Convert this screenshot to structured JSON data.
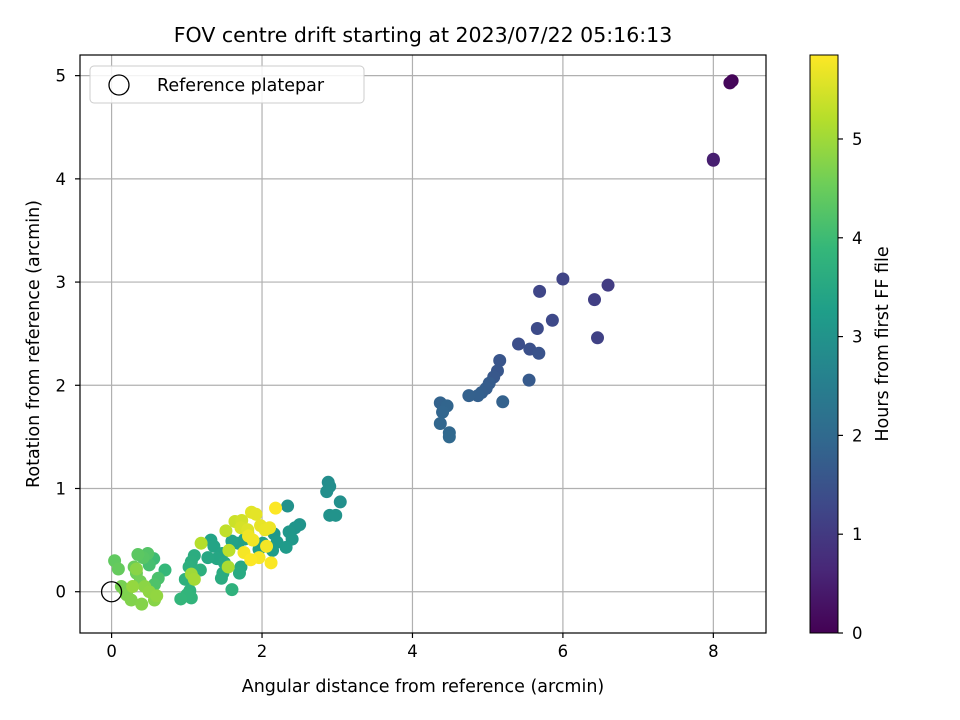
{
  "chart_data": {
    "type": "scatter",
    "title": "FOV centre drift starting at 2023/07/22 05:16:13",
    "xlabel": "Angular distance from reference (arcmin)",
    "ylabel": "Rotation from reference (arcmin)",
    "xlim": [
      -0.42,
      8.7
    ],
    "ylim": [
      -0.4,
      5.2
    ],
    "xticks": [
      0,
      2,
      4,
      6,
      8
    ],
    "yticks": [
      0,
      1,
      2,
      3,
      4,
      5
    ],
    "grid": true,
    "legend": {
      "label": "Reference platepar",
      "placement": "top-left"
    },
    "reference_point": {
      "x": 0,
      "y": 0
    },
    "colorbar": {
      "label": "Hours from first FF file",
      "range": [
        0,
        5.85
      ],
      "ticks": [
        0,
        1,
        2,
        3,
        4,
        5
      ],
      "colormap": "viridis"
    },
    "colormap_stops": [
      "#440154",
      "#482878",
      "#3e4989",
      "#31688e",
      "#26828e",
      "#1f9e89",
      "#35b779",
      "#6ece58",
      "#b5de2b",
      "#fde725"
    ],
    "points": [
      {
        "x": 8.25,
        "y": 4.95,
        "c": 0.05
      },
      {
        "x": 8.22,
        "y": 4.93,
        "c": 0.1
      },
      {
        "x": 8.0,
        "y": 4.18,
        "c": 0.45
      },
      {
        "x": 8.0,
        "y": 4.19,
        "c": 0.5
      },
      {
        "x": 6.6,
        "y": 2.97,
        "c": 1.05
      },
      {
        "x": 6.42,
        "y": 2.83,
        "c": 1.1
      },
      {
        "x": 6.46,
        "y": 2.46,
        "c": 1.15
      },
      {
        "x": 6.0,
        "y": 3.03,
        "c": 1.2
      },
      {
        "x": 5.69,
        "y": 2.91,
        "c": 1.25
      },
      {
        "x": 5.86,
        "y": 2.63,
        "c": 1.3
      },
      {
        "x": 5.66,
        "y": 2.55,
        "c": 1.35
      },
      {
        "x": 5.41,
        "y": 2.4,
        "c": 1.4
      },
      {
        "x": 5.56,
        "y": 2.35,
        "c": 1.45
      },
      {
        "x": 5.68,
        "y": 2.31,
        "c": 1.5
      },
      {
        "x": 5.16,
        "y": 2.24,
        "c": 1.55
      },
      {
        "x": 5.13,
        "y": 2.14,
        "c": 1.58
      },
      {
        "x": 5.08,
        "y": 2.08,
        "c": 1.62
      },
      {
        "x": 5.55,
        "y": 2.05,
        "c": 1.65
      },
      {
        "x": 5.02,
        "y": 2.02,
        "c": 1.7
      },
      {
        "x": 4.98,
        "y": 1.97,
        "c": 1.72
      },
      {
        "x": 4.92,
        "y": 1.93,
        "c": 1.75
      },
      {
        "x": 4.87,
        "y": 1.9,
        "c": 1.78
      },
      {
        "x": 4.75,
        "y": 1.9,
        "c": 1.8
      },
      {
        "x": 5.2,
        "y": 1.84,
        "c": 1.82
      },
      {
        "x": 4.37,
        "y": 1.83,
        "c": 1.85
      },
      {
        "x": 4.46,
        "y": 1.8,
        "c": 1.88
      },
      {
        "x": 4.4,
        "y": 1.74,
        "c": 1.9
      },
      {
        "x": 4.37,
        "y": 1.63,
        "c": 1.92
      },
      {
        "x": 4.49,
        "y": 1.54,
        "c": 1.95
      },
      {
        "x": 4.49,
        "y": 1.5,
        "c": 1.97
      },
      {
        "x": 2.88,
        "y": 1.06,
        "c": 2.85
      },
      {
        "x": 2.9,
        "y": 1.02,
        "c": 2.88
      },
      {
        "x": 2.86,
        "y": 0.97,
        "c": 2.9
      },
      {
        "x": 3.04,
        "y": 0.87,
        "c": 2.92
      },
      {
        "x": 2.34,
        "y": 0.83,
        "c": 2.95
      },
      {
        "x": 2.9,
        "y": 0.74,
        "c": 2.97
      },
      {
        "x": 2.98,
        "y": 0.74,
        "c": 3.0
      },
      {
        "x": 2.5,
        "y": 0.65,
        "c": 3.02
      },
      {
        "x": 2.44,
        "y": 0.62,
        "c": 3.05
      },
      {
        "x": 2.36,
        "y": 0.58,
        "c": 3.08
      },
      {
        "x": 2.4,
        "y": 0.51,
        "c": 3.1
      },
      {
        "x": 2.16,
        "y": 0.56,
        "c": 3.12
      },
      {
        "x": 2.2,
        "y": 0.48,
        "c": 3.15
      },
      {
        "x": 2.32,
        "y": 0.43,
        "c": 3.18
      },
      {
        "x": 2.14,
        "y": 0.4,
        "c": 3.2
      },
      {
        "x": 2.01,
        "y": 0.47,
        "c": 3.22
      },
      {
        "x": 1.96,
        "y": 0.41,
        "c": 3.25
      },
      {
        "x": 1.81,
        "y": 0.57,
        "c": 3.28
      },
      {
        "x": 1.77,
        "y": 0.51,
        "c": 3.3
      },
      {
        "x": 1.68,
        "y": 0.47,
        "c": 3.32
      },
      {
        "x": 1.6,
        "y": 0.49,
        "c": 3.35
      },
      {
        "x": 1.32,
        "y": 0.5,
        "c": 3.38
      },
      {
        "x": 1.36,
        "y": 0.44,
        "c": 3.4
      },
      {
        "x": 1.47,
        "y": 0.37,
        "c": 3.42
      },
      {
        "x": 1.4,
        "y": 0.32,
        "c": 3.45
      },
      {
        "x": 1.28,
        "y": 0.33,
        "c": 3.48
      },
      {
        "x": 1.5,
        "y": 0.28,
        "c": 3.5
      },
      {
        "x": 1.72,
        "y": 0.24,
        "c": 3.52
      },
      {
        "x": 1.7,
        "y": 0.18,
        "c": 3.55
      },
      {
        "x": 1.48,
        "y": 0.18,
        "c": 3.58
      },
      {
        "x": 1.46,
        "y": 0.13,
        "c": 3.6
      },
      {
        "x": 1.1,
        "y": 0.35,
        "c": 3.62
      },
      {
        "x": 1.06,
        "y": 0.29,
        "c": 3.65
      },
      {
        "x": 1.03,
        "y": 0.24,
        "c": 3.68
      },
      {
        "x": 1.18,
        "y": 0.21,
        "c": 3.7
      },
      {
        "x": 0.98,
        "y": 0.12,
        "c": 3.72
      },
      {
        "x": 1.6,
        "y": 0.02,
        "c": 3.75
      },
      {
        "x": 1.04,
        "y": 0.01,
        "c": 3.78
      },
      {
        "x": 1.06,
        "y": -0.06,
        "c": 3.8
      },
      {
        "x": 1.0,
        "y": -0.03,
        "c": 3.82
      },
      {
        "x": 0.92,
        "y": -0.07,
        "c": 3.85
      },
      {
        "x": 0.71,
        "y": 0.21,
        "c": 3.9
      },
      {
        "x": 0.56,
        "y": 0.32,
        "c": 4.0
      },
      {
        "x": 0.5,
        "y": 0.26,
        "c": 4.1
      },
      {
        "x": 0.62,
        "y": 0.13,
        "c": 4.15
      },
      {
        "x": 0.57,
        "y": 0.07,
        "c": 4.2
      },
      {
        "x": 0.48,
        "y": 0.37,
        "c": 4.25
      },
      {
        "x": 0.42,
        "y": 0.33,
        "c": 4.3
      },
      {
        "x": 0.35,
        "y": 0.36,
        "c": 4.35
      },
      {
        "x": 0.04,
        "y": 0.3,
        "c": 4.4
      },
      {
        "x": 0.09,
        "y": 0.22,
        "c": 4.45
      },
      {
        "x": 0.3,
        "y": 0.24,
        "c": 4.5
      },
      {
        "x": 0.33,
        "y": 0.18,
        "c": 4.55
      },
      {
        "x": 0.38,
        "y": 0.1,
        "c": 4.6
      },
      {
        "x": 0.13,
        "y": 0.05,
        "c": 4.62
      },
      {
        "x": 0.17,
        "y": 0.02,
        "c": 4.65
      },
      {
        "x": 0.2,
        "y": -0.03,
        "c": 4.7
      },
      {
        "x": 0.26,
        "y": -0.08,
        "c": 4.72
      },
      {
        "x": 0.4,
        "y": -0.12,
        "c": 4.75
      },
      {
        "x": 0.57,
        "y": -0.08,
        "c": 4.78
      },
      {
        "x": 0.33,
        "y": 0.22,
        "c": 4.8
      },
      {
        "x": 0.44,
        "y": 0.05,
        "c": 4.82
      },
      {
        "x": 0.5,
        "y": 0.0,
        "c": 4.85
      },
      {
        "x": 0.6,
        "y": -0.04,
        "c": 4.88
      },
      {
        "x": 0.28,
        "y": 0.05,
        "c": 4.9
      },
      {
        "x": 1.06,
        "y": 0.17,
        "c": 5.0
      },
      {
        "x": 1.1,
        "y": 0.12,
        "c": 5.05
      },
      {
        "x": 1.55,
        "y": 0.24,
        "c": 5.1
      },
      {
        "x": 1.19,
        "y": 0.47,
        "c": 5.2
      },
      {
        "x": 1.56,
        "y": 0.4,
        "c": 5.25
      },
      {
        "x": 1.52,
        "y": 0.59,
        "c": 5.3
      },
      {
        "x": 1.64,
        "y": 0.68,
        "c": 5.4
      },
      {
        "x": 1.73,
        "y": 0.69,
        "c": 5.45
      },
      {
        "x": 1.72,
        "y": 0.62,
        "c": 5.5
      },
      {
        "x": 1.81,
        "y": 0.6,
        "c": 5.55
      },
      {
        "x": 1.86,
        "y": 0.77,
        "c": 5.6
      },
      {
        "x": 1.92,
        "y": 0.75,
        "c": 5.62
      },
      {
        "x": 1.98,
        "y": 0.64,
        "c": 5.65
      },
      {
        "x": 2.04,
        "y": 0.6,
        "c": 5.68
      },
      {
        "x": 2.1,
        "y": 0.62,
        "c": 5.7
      },
      {
        "x": 1.82,
        "y": 0.54,
        "c": 5.72
      },
      {
        "x": 1.88,
        "y": 0.5,
        "c": 5.74
      },
      {
        "x": 2.06,
        "y": 0.44,
        "c": 5.76
      },
      {
        "x": 1.76,
        "y": 0.38,
        "c": 5.78
      },
      {
        "x": 1.96,
        "y": 0.33,
        "c": 5.8
      },
      {
        "x": 2.12,
        "y": 0.28,
        "c": 5.82
      },
      {
        "x": 1.85,
        "y": 0.31,
        "c": 5.83
      },
      {
        "x": 2.18,
        "y": 0.81,
        "c": 5.84
      }
    ]
  }
}
